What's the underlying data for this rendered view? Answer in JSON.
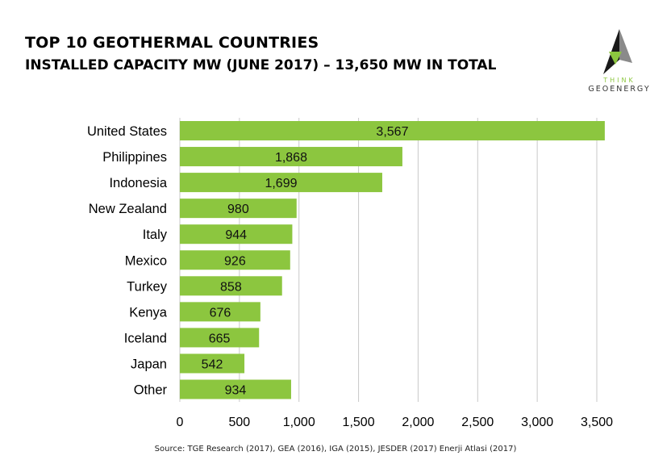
{
  "logo": {
    "line1": "THINK",
    "line2": "GEOENERGY"
  },
  "source": "Source: TGE Research (2017), GEA (2016), IGA (2015), JESDER (2017) Enerji Atlasi (2017)",
  "chart_data": {
    "type": "bar",
    "orientation": "horizontal",
    "title": "TOP 10 GEOTHERMAL COUNTRIES",
    "subtitle": "INSTALLED CAPACITY MW (JUNE 2017) – 13,650 MW IN TOTAL",
    "categories": [
      "United States",
      "Philippines",
      "Indonesia",
      "New Zealand",
      "Italy",
      "Mexico",
      "Turkey",
      "Kenya",
      "Iceland",
      "Japan",
      "Other"
    ],
    "values": [
      3567,
      1868,
      1699,
      980,
      944,
      926,
      858,
      676,
      665,
      542,
      934
    ],
    "data_labels": [
      "3,567",
      "1,868",
      "1,699",
      "980",
      "944",
      "926",
      "858",
      "676",
      "665",
      "542",
      "934"
    ],
    "x_ticks": [
      "0",
      "500",
      "1,000",
      "1,500",
      "2,000",
      "2,500",
      "3,000",
      "3,500"
    ],
    "xlim": [
      0,
      3500
    ],
    "xlabel": "",
    "ylabel": "",
    "grid": "vertical",
    "bar_color": "#8cc63f",
    "grid_color": "#c8c8c8"
  }
}
